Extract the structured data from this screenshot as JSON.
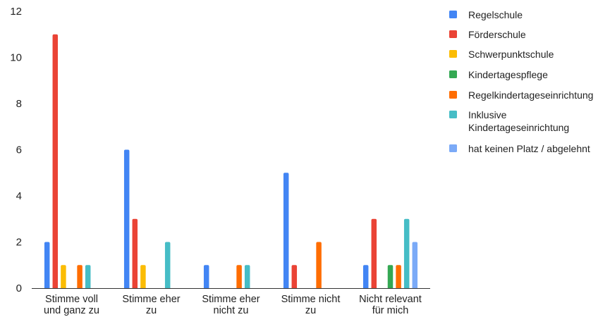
{
  "chart_data": {
    "type": "bar",
    "title": "",
    "xlabel": "",
    "ylabel": "",
    "ylim": [
      0,
      12
    ],
    "yticks": [
      0,
      2,
      4,
      6,
      8,
      10,
      12
    ],
    "grid": false,
    "legend_position": "right",
    "categories": [
      [
        "Stimme voll",
        "und ganz zu"
      ],
      [
        "Stimme eher",
        "zu"
      ],
      [
        "Stimme eher",
        "nicht zu"
      ],
      [
        "Stimme nicht",
        "zu"
      ],
      [
        "Nicht relevant",
        "für mich"
      ]
    ],
    "series": [
      {
        "name": [
          "Regelschule"
        ],
        "color": "#4285f4",
        "values": [
          2,
          6,
          1,
          5,
          1
        ]
      },
      {
        "name": [
          "Förderschule"
        ],
        "color": "#ea4335",
        "values": [
          11,
          3,
          0,
          1,
          3
        ]
      },
      {
        "name": [
          "Schwerpunktschule"
        ],
        "color": "#fbbc04",
        "values": [
          1,
          1,
          0,
          0,
          0
        ]
      },
      {
        "name": [
          "Kindertagespflege"
        ],
        "color": "#34a853",
        "values": [
          0,
          0,
          0,
          0,
          1
        ]
      },
      {
        "name": [
          "Regelkindertageseinrichtung"
        ],
        "color": "#ff6d01",
        "values": [
          1,
          0,
          1,
          2,
          1
        ]
      },
      {
        "name": [
          "Inklusive",
          "Kindertageseinrichtung"
        ],
        "color": "#46bdc6",
        "values": [
          1,
          2,
          1,
          0,
          3
        ]
      },
      {
        "name": [
          "hat keinen Platz / abgelehnt"
        ],
        "color": "#7baaf7",
        "values": [
          0,
          0,
          0,
          0,
          2
        ]
      }
    ]
  }
}
